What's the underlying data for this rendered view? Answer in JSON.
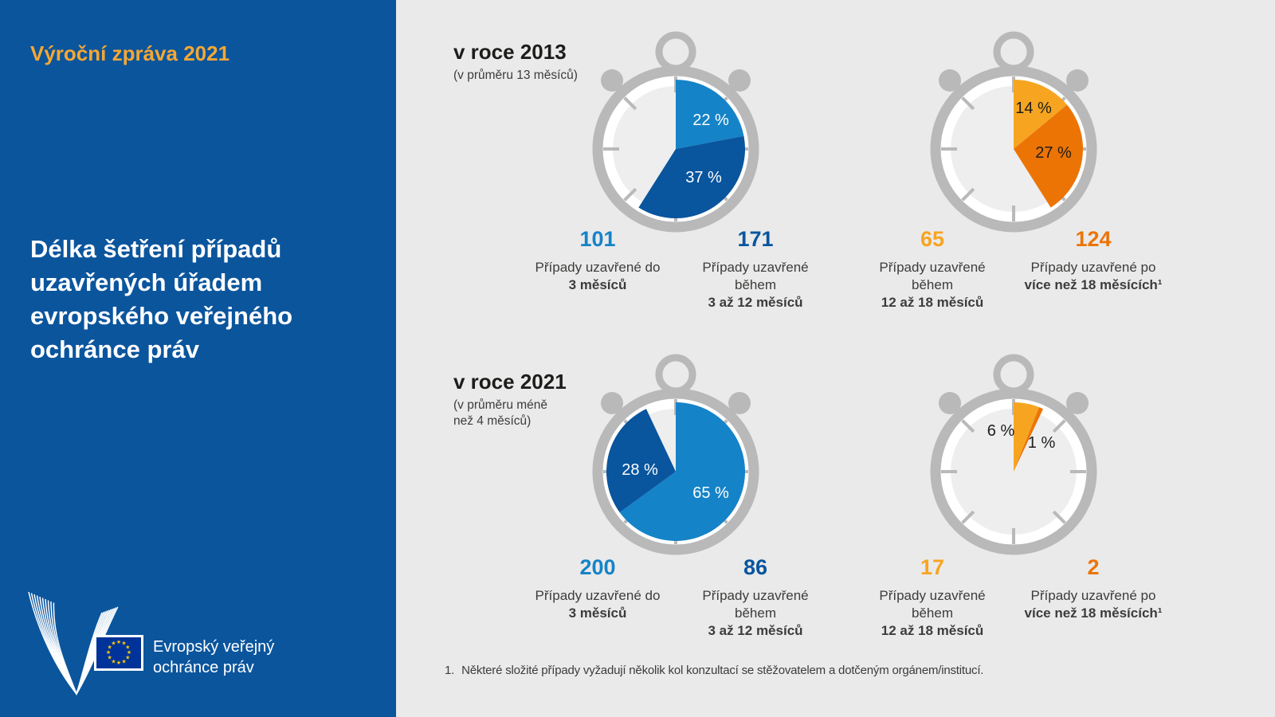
{
  "colors": {
    "sidebar_blue": "#0b559d",
    "accent_orange": "#f5a733",
    "light_blue": "#1583c8",
    "dark_blue": "#09559e",
    "yellow": "#f7a521",
    "orange": "#ec7405",
    "ring_gray": "#b9b9b9",
    "background_gray": "#eaeaea",
    "eu_flag_blue": "#003399",
    "eu_star_yellow": "#ffcc00"
  },
  "sidebar": {
    "report_label": "Výroční zpráva 2021",
    "title_lines": [
      "Délka šetření případů",
      "uzavřených úřadem",
      "evropského veřejného",
      "ochránce práv"
    ],
    "logo": {
      "org_lines": [
        "Evropský veřejný",
        "ochránce práv"
      ]
    }
  },
  "sections": [
    {
      "heading": "v roce 2013",
      "subtitle_lines": [
        "(v průměru 13 měsíců)"
      ]
    },
    {
      "heading": "v roce 2021",
      "subtitle_lines": [
        "(v průměru méně",
        "než 4 měsíců)"
      ]
    }
  ],
  "chart_data": [
    {
      "type": "pie",
      "year": "2013",
      "dial_total_pct": 100,
      "slices": [
        {
          "pct": 22,
          "pct_label": "22 %",
          "count": 101,
          "color": "#1583c8",
          "caption": [
            "Případy uzavřené do"
          ],
          "caption_bold": "3 měsíců"
        },
        {
          "pct": 37,
          "pct_label": "37 %",
          "count": 171,
          "color": "#09559e",
          "caption": [
            "Případy uzavřené",
            "během"
          ],
          "caption_bold": "3 až 12 měsíců"
        }
      ]
    },
    {
      "type": "pie",
      "year": "2013",
      "dial_total_pct": 100,
      "slices": [
        {
          "pct": 14,
          "pct_label": "14 %",
          "count": 65,
          "color": "#f7a521",
          "caption": [
            "Případy uzavřené",
            "během"
          ],
          "caption_bold": "12 až 18 měsíců"
        },
        {
          "pct": 27,
          "pct_label": "27 %",
          "count": 124,
          "color": "#ec7405",
          "caption": [
            "Případy uzavřené po"
          ],
          "caption_bold": "více než 18 měsících¹"
        }
      ]
    },
    {
      "type": "pie",
      "year": "2021",
      "dial_total_pct": 100,
      "slices": [
        {
          "pct": 65,
          "pct_label": "65 %",
          "count": 200,
          "color": "#1583c8",
          "caption": [
            "Případy uzavřené do"
          ],
          "caption_bold": "3 měsíců"
        },
        {
          "pct": 28,
          "pct_label": "28 %",
          "count": 86,
          "color": "#09559e",
          "caption": [
            "Případy uzavřené",
            "během"
          ],
          "caption_bold": "3 až 12 měsíců"
        }
      ]
    },
    {
      "type": "pie",
      "year": "2021",
      "dial_total_pct": 100,
      "slices": [
        {
          "pct": 6,
          "pct_label": "6 %",
          "count": 17,
          "color": "#f7a521",
          "caption": [
            "Případy uzavřené",
            "během"
          ],
          "caption_bold": "12 až 18 měsíců"
        },
        {
          "pct": 1,
          "pct_label": "1 %",
          "count": 2,
          "color": "#ec7405",
          "caption": [
            "Případy uzavřené po"
          ],
          "caption_bold": "více než 18 měsících¹"
        }
      ]
    }
  ],
  "footnote": {
    "marker": "1.",
    "text": "Některé složité případy vyžadují několik kol konzultací se stěžovatelem a dotčeným orgánem/institucí."
  }
}
